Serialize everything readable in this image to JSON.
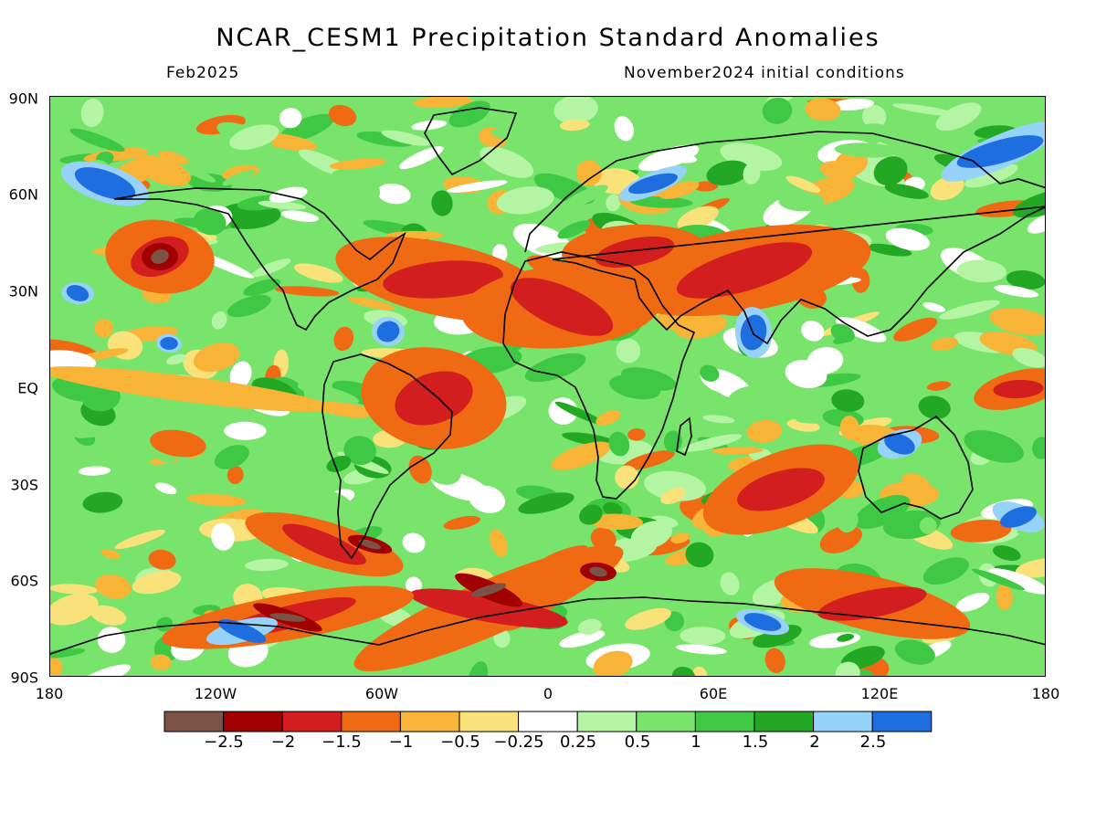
{
  "header": {
    "title": "NCAR_CESM1 Precipitation Standard Anomalies",
    "valid_month": "Feb2025",
    "initial_conditions": "November2024 initial conditions"
  },
  "axes": {
    "y_ticks": [
      "90N",
      "60N",
      "30N",
      "EQ",
      "30S",
      "60S",
      "90S"
    ],
    "x_ticks": [
      "180",
      "120W",
      "60W",
      "0",
      "60E",
      "120E",
      "180"
    ]
  },
  "colorbar": {
    "colors": [
      "#7a5246",
      "#a00000",
      "#d21e1e",
      "#f06a14",
      "#f7b436",
      "#fae27a",
      "#ffffff",
      "#b4f5a4",
      "#78e46c",
      "#3fc844",
      "#22a823",
      "#96d2fa",
      "#1e6ee0"
    ],
    "tick_labels": [
      "−2.5",
      "−2",
      "−1.5",
      "−1",
      "−0.5",
      "−0.25",
      "0.25",
      "0.5",
      "1",
      "1.5",
      "2",
      "2.5"
    ]
  }
}
